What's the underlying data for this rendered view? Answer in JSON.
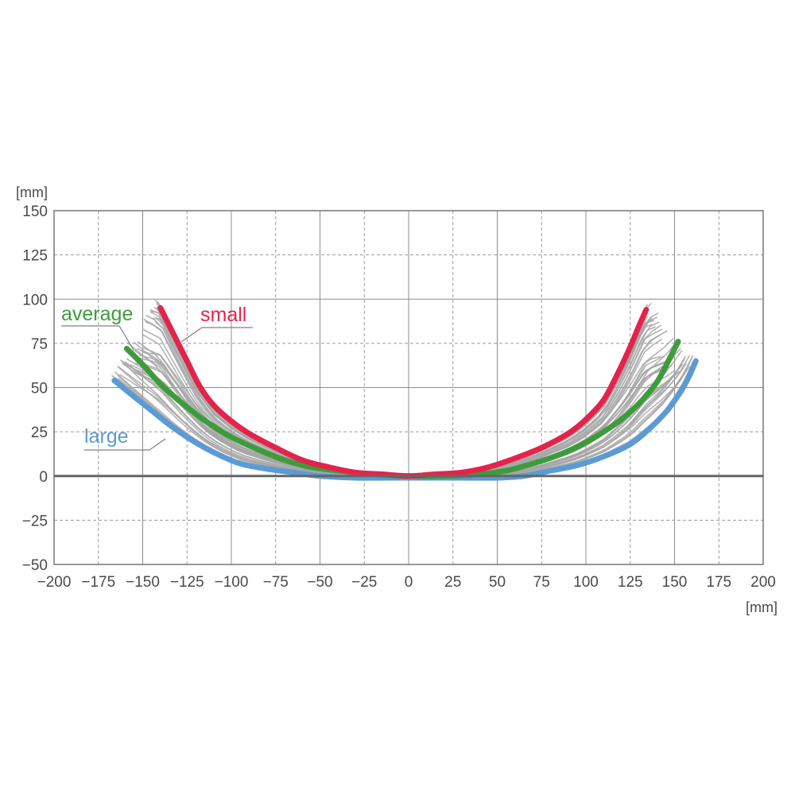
{
  "chart_data": {
    "type": "line",
    "title": "",
    "xlabel": "[mm]",
    "ylabel": "[mm]",
    "xlim": [
      -200,
      200
    ],
    "ylim": [
      -50,
      150
    ],
    "x_ticks": [
      -200,
      -175,
      -150,
      -125,
      -100,
      -75,
      -50,
      -25,
      0,
      25,
      50,
      75,
      100,
      125,
      150,
      175,
      200
    ],
    "x_tick_labels": [
      "−200",
      "−175",
      "−150",
      "−125",
      "−100",
      "−75",
      "−50",
      "−25",
      "0",
      "25",
      "50",
      "75",
      "100",
      "125",
      "150",
      "175",
      "200"
    ],
    "y_ticks": [
      -50,
      -25,
      0,
      25,
      50,
      75,
      100,
      125,
      150
    ],
    "y_tick_labels": [
      "−50",
      "−25",
      "0",
      "25",
      "50",
      "75",
      "100",
      "125",
      "150"
    ],
    "grid": true,
    "series": [
      {
        "name": "small",
        "color": "#e4234b",
        "points": [
          [
            -140,
            95
          ],
          [
            -132,
            79
          ],
          [
            -125,
            65
          ],
          [
            -118,
            51
          ],
          [
            -110,
            40
          ],
          [
            -100,
            31
          ],
          [
            -90,
            24
          ],
          [
            -75,
            16
          ],
          [
            -60,
            9
          ],
          [
            -45,
            5
          ],
          [
            -30,
            2
          ],
          [
            -15,
            1
          ],
          [
            0,
            0
          ],
          [
            15,
            1
          ],
          [
            30,
            2
          ],
          [
            45,
            5
          ],
          [
            60,
            10
          ],
          [
            75,
            16
          ],
          [
            90,
            24
          ],
          [
            100,
            32
          ],
          [
            110,
            43
          ],
          [
            118,
            58
          ],
          [
            125,
            73
          ],
          [
            130,
            85
          ],
          [
            134,
            94
          ]
        ]
      },
      {
        "name": "average",
        "color": "#3e9b3c",
        "points": [
          [
            -159,
            72
          ],
          [
            -150,
            63
          ],
          [
            -140,
            52
          ],
          [
            -130,
            43
          ],
          [
            -120,
            35
          ],
          [
            -110,
            28
          ],
          [
            -100,
            22
          ],
          [
            -85,
            15
          ],
          [
            -70,
            9
          ],
          [
            -55,
            5
          ],
          [
            -40,
            3
          ],
          [
            -20,
            1
          ],
          [
            0,
            0
          ],
          [
            20,
            0
          ],
          [
            40,
            1
          ],
          [
            55,
            3
          ],
          [
            70,
            7
          ],
          [
            85,
            12
          ],
          [
            100,
            19
          ],
          [
            110,
            25
          ],
          [
            120,
            32
          ],
          [
            130,
            41
          ],
          [
            140,
            53
          ],
          [
            147,
            66
          ],
          [
            152,
            76
          ]
        ]
      },
      {
        "name": "large",
        "color": "#5b9bd5",
        "points": [
          [
            -166,
            54
          ],
          [
            -155,
            45
          ],
          [
            -145,
            37
          ],
          [
            -135,
            29
          ],
          [
            -125,
            22
          ],
          [
            -115,
            16
          ],
          [
            -105,
            11
          ],
          [
            -95,
            7
          ],
          [
            -80,
            4
          ],
          [
            -65,
            2
          ],
          [
            -50,
            0
          ],
          [
            -30,
            -1
          ],
          [
            0,
            -1
          ],
          [
            30,
            -1
          ],
          [
            50,
            -1
          ],
          [
            65,
            0
          ],
          [
            80,
            3
          ],
          [
            95,
            6
          ],
          [
            110,
            11
          ],
          [
            125,
            18
          ],
          [
            135,
            26
          ],
          [
            145,
            36
          ],
          [
            153,
            47
          ],
          [
            158,
            56
          ],
          [
            162,
            65
          ]
        ]
      }
    ],
    "individual_curves_color": "#a6a6a6"
  }
}
